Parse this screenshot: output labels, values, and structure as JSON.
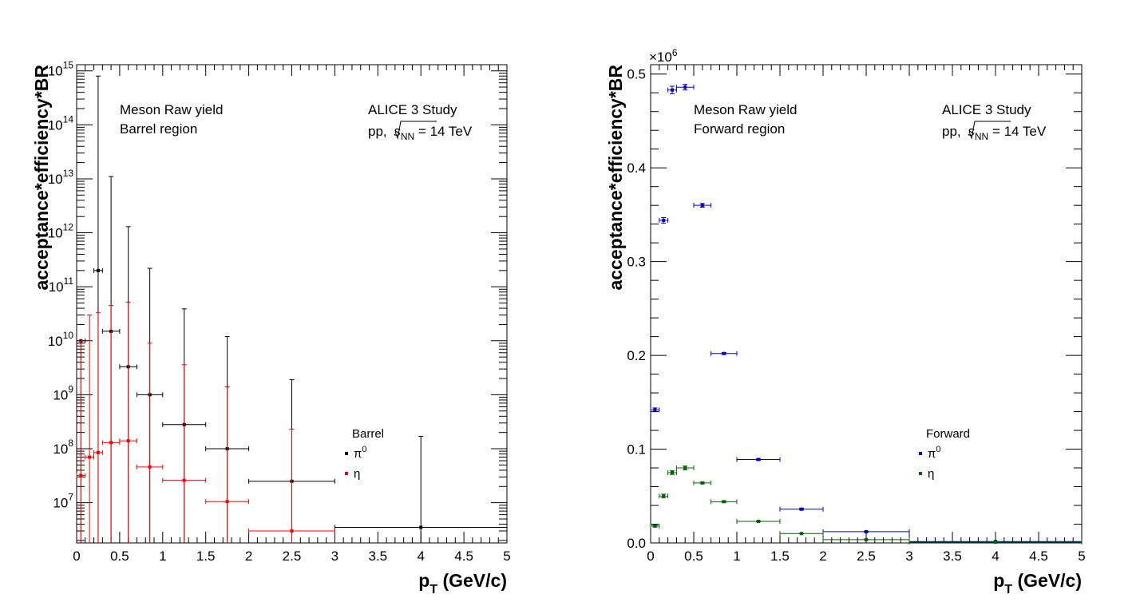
{
  "chart_data": [
    {
      "type": "scatter",
      "panel": "left",
      "log_y": true,
      "xlabel_main": "p",
      "xlabel_sub": "T",
      "xlabel_rest": " (GeV/c)",
      "ylabel": "acceptance*efficiency*BR",
      "xlim": [
        0,
        5
      ],
      "ylim": [
        1800000.0,
        1300000000000000.0
      ],
      "x_ticks": [
        "0",
        "0.5",
        "1",
        "1.5",
        "2",
        "2.5",
        "3",
        "3.5",
        "4",
        "4.5",
        "5"
      ],
      "y_tick_labels": [
        {
          "base": "10",
          "exp": "7",
          "value": 10000000.0
        },
        {
          "base": "10",
          "exp": "8",
          "value": 100000000.0
        },
        {
          "base": "10",
          "exp": "9",
          "value": 1000000000.0
        },
        {
          "base": "10",
          "exp": "10",
          "value": 10000000000.0
        },
        {
          "base": "10",
          "exp": "11",
          "value": 100000000000.0
        },
        {
          "base": "10",
          "exp": "12",
          "value": 1000000000000.0
        },
        {
          "base": "10",
          "exp": "13",
          "value": 10000000000000.0
        },
        {
          "base": "10",
          "exp": "14",
          "value": 100000000000000.0
        },
        {
          "base": "10",
          "exp": "15",
          "value": 1000000000000000.0
        }
      ],
      "annotations": {
        "left_line1": "Meson Raw yield",
        "left_line2": "Barrel region",
        "right_line1": "ALICE 3 Study",
        "right_pp": "pp, ",
        "right_s": "s",
        "right_nn": "NN",
        "right_energy": " = 14 TeV"
      },
      "legend": {
        "header": "Barrel",
        "entries": [
          {
            "base": "π",
            "sup": "0",
            "color": "#000000"
          },
          {
            "base": "η",
            "sup": "",
            "color": "#ff0000"
          }
        ]
      },
      "series": [
        {
          "name": "π0",
          "color": "#000000",
          "points": [
            {
              "x": 0.05,
              "xlo": 0.0,
              "xhi": 0.1,
              "y": 10000000000.0,
              "ylo": 1800000.0,
              "yhi": 10000000000.0
            },
            {
              "x": 0.25,
              "xlo": 0.2,
              "xhi": 0.3,
              "y": 200000000000.0,
              "ylo": 1800000.0,
              "yhi": 800000000000000.0
            },
            {
              "x": 0.4,
              "xlo": 0.3,
              "xhi": 0.5,
              "y": 15000000000.0,
              "ylo": 1800000.0,
              "yhi": 11000000000000.0
            },
            {
              "x": 0.6,
              "xlo": 0.5,
              "xhi": 0.7,
              "y": 3300000000.0,
              "ylo": 1800000.0,
              "yhi": 1300000000000.0
            },
            {
              "x": 0.85,
              "xlo": 0.7,
              "xhi": 1.0,
              "y": 1000000000.0,
              "ylo": 1800000.0,
              "yhi": 220000000000.0
            },
            {
              "x": 1.25,
              "xlo": 1.0,
              "xhi": 1.5,
              "y": 280000000.0,
              "ylo": 1800000.0,
              "yhi": 39000000000.0
            },
            {
              "x": 1.75,
              "xlo": 1.5,
              "xhi": 2.0,
              "y": 100000000.0,
              "ylo": 1800000.0,
              "yhi": 12000000000.0
            },
            {
              "x": 2.5,
              "xlo": 2.0,
              "xhi": 3.0,
              "y": 25000000.0,
              "ylo": 1800000.0,
              "yhi": 1900000000.0
            },
            {
              "x": 4.0,
              "xlo": 3.0,
              "xhi": 5.0,
              "y": 3500000.0,
              "ylo": 1800000.0,
              "yhi": 170000000.0
            }
          ]
        },
        {
          "name": "η",
          "color": "#ff0000",
          "points": [
            {
              "x": 0.05,
              "xlo": 0.0,
              "xhi": 0.1,
              "y": 32000000.0,
              "ylo": 1800000.0,
              "yhi": 10000000000.0
            },
            {
              "x": 0.15,
              "xlo": 0.1,
              "xhi": 0.2,
              "y": 70000000.0,
              "ylo": 1800000.0,
              "yhi": 30000000000.0
            },
            {
              "x": 0.25,
              "xlo": 0.2,
              "xhi": 0.3,
              "y": 85000000.0,
              "ylo": 1800000.0,
              "yhi": 33000000000.0
            },
            {
              "x": 0.4,
              "xlo": 0.3,
              "xhi": 0.5,
              "y": 130000000.0,
              "ylo": 1800000.0,
              "yhi": 45000000000.0
            },
            {
              "x": 0.6,
              "xlo": 0.5,
              "xhi": 0.7,
              "y": 140000000.0,
              "ylo": 1800000.0,
              "yhi": 52000000000.0
            },
            {
              "x": 0.85,
              "xlo": 0.7,
              "xhi": 1.0,
              "y": 46000000.0,
              "ylo": 1800000.0,
              "yhi": 9000000000.0
            },
            {
              "x": 1.25,
              "xlo": 1.0,
              "xhi": 1.5,
              "y": 26000000.0,
              "ylo": 1800000.0,
              "yhi": 3600000000.0
            },
            {
              "x": 1.75,
              "xlo": 1.5,
              "xhi": 2.0,
              "y": 10500000.0,
              "ylo": 1800000.0,
              "yhi": 1400000000.0
            },
            {
              "x": 2.5,
              "xlo": 2.0,
              "xhi": 3.0,
              "y": 3000000.0,
              "ylo": 1800000.0,
              "yhi": 230000000.0
            }
          ]
        }
      ]
    },
    {
      "type": "scatter",
      "panel": "right",
      "log_y": false,
      "xlabel_main": "p",
      "xlabel_sub": "T",
      "xlabel_rest": " (GeV/c)",
      "ylabel": "acceptance*efficiency*BR",
      "y_multiplier_base": "×10",
      "y_multiplier_exp": "6",
      "xlim": [
        0,
        5
      ],
      "ylim": [
        0,
        0.51
      ],
      "x_ticks": [
        "0",
        "0.5",
        "1",
        "1.5",
        "2",
        "2.5",
        "3",
        "3.5",
        "4",
        "4.5",
        "5"
      ],
      "y_tick_labels": [
        {
          "label": "0.0",
          "value": 0.0
        },
        {
          "label": "0.1",
          "value": 0.1
        },
        {
          "label": "0.2",
          "value": 0.2
        },
        {
          "label": "0.3",
          "value": 0.3
        },
        {
          "label": "0.4",
          "value": 0.4
        },
        {
          "label": "0.5",
          "value": 0.5
        }
      ],
      "annotations": {
        "left_line1": "Meson Raw yield",
        "left_line2": "Forward region",
        "right_line1": "ALICE 3 Study",
        "right_pp": "pp, ",
        "right_s": "s",
        "right_nn": "NN",
        "right_energy": " = 14 TeV"
      },
      "legend": {
        "header": "Forward",
        "entries": [
          {
            "base": "π",
            "sup": "0",
            "color": "#0000cc"
          },
          {
            "base": "η",
            "sup": "",
            "color": "#006400"
          }
        ]
      },
      "series": [
        {
          "name": "π0",
          "color": "#0000cc",
          "points": [
            {
              "x": 0.05,
              "xlo": 0.0,
              "xhi": 0.1,
              "y": 0.142,
              "yerr": 0.002
            },
            {
              "x": 0.15,
              "xlo": 0.1,
              "xhi": 0.2,
              "y": 0.344,
              "yerr": 0.003
            },
            {
              "x": 0.25,
              "xlo": 0.2,
              "xhi": 0.3,
              "y": 0.483,
              "yerr": 0.004
            },
            {
              "x": 0.4,
              "xlo": 0.3,
              "xhi": 0.5,
              "y": 0.486,
              "yerr": 0.003
            },
            {
              "x": 0.6,
              "xlo": 0.5,
              "xhi": 0.7,
              "y": 0.36,
              "yerr": 0.002
            },
            {
              "x": 0.85,
              "xlo": 0.7,
              "xhi": 1.0,
              "y": 0.202,
              "yerr": 0.001
            },
            {
              "x": 1.25,
              "xlo": 1.0,
              "xhi": 1.5,
              "y": 0.089,
              "yerr": 0.001
            },
            {
              "x": 1.75,
              "xlo": 1.5,
              "xhi": 2.0,
              "y": 0.036,
              "yerr": 0.001
            },
            {
              "x": 2.5,
              "xlo": 2.0,
              "xhi": 3.0,
              "y": 0.012,
              "yerr": 0.0005
            },
            {
              "x": 4.0,
              "xlo": 3.0,
              "xhi": 5.0,
              "y": 0.0015,
              "yerr": 0.0002
            }
          ]
        },
        {
          "name": "η",
          "color": "#006400",
          "points": [
            {
              "x": 0.05,
              "xlo": 0.0,
              "xhi": 0.1,
              "y": 0.018,
              "yerr": 0.001
            },
            {
              "x": 0.15,
              "xlo": 0.1,
              "xhi": 0.2,
              "y": 0.05,
              "yerr": 0.002
            },
            {
              "x": 0.25,
              "xlo": 0.2,
              "xhi": 0.3,
              "y": 0.075,
              "yerr": 0.002
            },
            {
              "x": 0.4,
              "xlo": 0.3,
              "xhi": 0.5,
              "y": 0.08,
              "yerr": 0.002
            },
            {
              "x": 0.6,
              "xlo": 0.5,
              "xhi": 0.7,
              "y": 0.064,
              "yerr": 0.001
            },
            {
              "x": 0.85,
              "xlo": 0.7,
              "xhi": 1.0,
              "y": 0.044,
              "yerr": 0.001
            },
            {
              "x": 1.25,
              "xlo": 1.0,
              "xhi": 1.5,
              "y": 0.023,
              "yerr": 0.0005
            },
            {
              "x": 1.75,
              "xlo": 1.5,
              "xhi": 2.0,
              "y": 0.01,
              "yerr": 0.0003
            },
            {
              "x": 2.5,
              "xlo": 2.0,
              "xhi": 3.0,
              "y": 0.0035,
              "yerr": 0.0002
            },
            {
              "x": 4.0,
              "xlo": 3.0,
              "xhi": 5.0,
              "y": 0.0008,
              "yerr": 0.0001
            }
          ]
        }
      ]
    }
  ]
}
